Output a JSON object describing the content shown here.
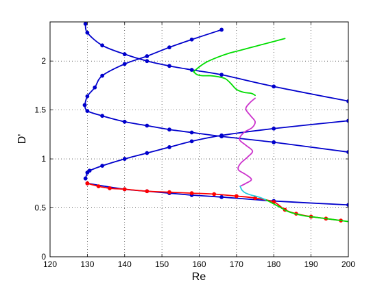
{
  "chart_data": {
    "type": "line",
    "title": "",
    "xlabel": "Re",
    "ylabel": "D'",
    "xlim": [
      120,
      200
    ],
    "ylim": [
      0,
      2.4
    ],
    "xticks": [
      120,
      130,
      140,
      150,
      160,
      170,
      180,
      190,
      200
    ],
    "xtick_labels": [
      "120",
      "130",
      "140",
      "150",
      "160",
      "170",
      "180",
      "190",
      "200"
    ],
    "yticks": [
      0,
      0.5,
      1,
      1.5,
      2
    ],
    "ytick_labels": [
      "0",
      "0.5",
      "1",
      "1.5",
      "2"
    ],
    "grid": "dotted",
    "colors": {
      "blue": "#0000cc",
      "red": "#ff0000",
      "green": "#00dd00",
      "magenta": "#cc33cc",
      "cyan": "#22ccdd"
    },
    "series": [
      {
        "color": "blue",
        "markers": true,
        "x": [
          129.5,
          130.0,
          130.6,
          134.0,
          140.0,
          146.0,
          152.0,
          158.0,
          166.0,
          180.0,
          200.0
        ],
        "y": [
          0.8,
          0.86,
          0.88,
          0.93,
          1.0,
          1.06,
          1.12,
          1.18,
          1.24,
          1.31,
          1.39
        ]
      },
      {
        "color": "blue",
        "markers": true,
        "x": [
          130.0,
          140.0,
          146.0,
          152.0,
          158.0,
          166.0,
          180.0,
          200.0
        ],
        "y": [
          0.75,
          0.69,
          0.67,
          0.65,
          0.63,
          0.61,
          0.57,
          0.53
        ]
      },
      {
        "color": "blue",
        "markers": true,
        "x": [
          129.3,
          130.0,
          134.0,
          140.0,
          146.0,
          152.0,
          158.0,
          166.0,
          180.0,
          200.0
        ],
        "y": [
          1.55,
          1.49,
          1.44,
          1.38,
          1.34,
          1.3,
          1.27,
          1.23,
          1.17,
          1.07
        ]
      },
      {
        "color": "blue",
        "markers": true,
        "x": [
          129.3,
          130.0,
          132.0,
          134.0,
          140.0,
          146.0,
          152.0,
          158.0,
          166.0
        ],
        "y": [
          1.55,
          1.64,
          1.73,
          1.85,
          1.97,
          2.05,
          2.14,
          2.22,
          2.32
        ]
      },
      {
        "color": "blue",
        "markers": true,
        "x": [
          129.5,
          130.0,
          134.0,
          140.0,
          146.0,
          152.0,
          158.0,
          166.0,
          180.0,
          200.0
        ],
        "y": [
          2.38,
          2.29,
          2.16,
          2.07,
          2.0,
          1.95,
          1.91,
          1.86,
          1.74,
          1.59
        ]
      },
      {
        "color": "red",
        "markers": true,
        "x": [
          130.0,
          133.0,
          136.0,
          140.0,
          146.0,
          152.0,
          158.0,
          164.0,
          170.0,
          175.0,
          180.0,
          183.0,
          186.0,
          190.0,
          194.0,
          198.0
        ],
        "y": [
          0.75,
          0.72,
          0.7,
          0.69,
          0.67,
          0.66,
          0.65,
          0.64,
          0.62,
          0.6,
          0.56,
          0.48,
          0.44,
          0.41,
          0.39,
          0.37
        ]
      },
      {
        "color": "green",
        "markers": false,
        "x": [
          158.5,
          160.0,
          162.0,
          165.0,
          168.0,
          171.0,
          174.0,
          176.0,
          178.0,
          180.0,
          183.0
        ],
        "y": [
          1.89,
          1.94,
          1.99,
          2.04,
          2.08,
          2.11,
          2.14,
          2.16,
          2.18,
          2.2,
          2.23
        ]
      },
      {
        "color": "green",
        "markers": false,
        "x": [
          158.5,
          159.5,
          161.0,
          163.0,
          165.0,
          167.0,
          168.5,
          170.0,
          172.0,
          174.0,
          175.0
        ],
        "y": [
          1.89,
          1.86,
          1.85,
          1.85,
          1.84,
          1.82,
          1.77,
          1.71,
          1.68,
          1.67,
          1.65
        ]
      },
      {
        "color": "magenta",
        "markers": false,
        "x": [
          175.0,
          173.5,
          172.5,
          173.8,
          175.0,
          174.2,
          172.0,
          170.8,
          172.5,
          174.3,
          173.0,
          171.0,
          170.5,
          172.5,
          174.0,
          172.5,
          171.0
        ],
        "y": [
          1.62,
          1.57,
          1.51,
          1.44,
          1.38,
          1.32,
          1.27,
          1.2,
          1.14,
          1.08,
          1.02,
          0.95,
          0.89,
          0.84,
          0.79,
          0.75,
          0.72
        ]
      },
      {
        "color": "cyan",
        "markers": false,
        "x": [
          171.0,
          171.5,
          172.5,
          174.0,
          176.0,
          178.0
        ],
        "y": [
          0.72,
          0.68,
          0.65,
          0.63,
          0.61,
          0.58
        ]
      },
      {
        "color": "green",
        "markers": false,
        "x": [
          178.0,
          181.0,
          184.0,
          188.0,
          192.0,
          196.0,
          200.0
        ],
        "y": [
          0.58,
          0.52,
          0.46,
          0.42,
          0.4,
          0.38,
          0.36
        ]
      }
    ]
  }
}
